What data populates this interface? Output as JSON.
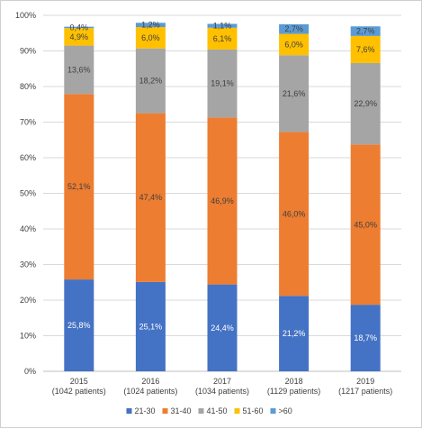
{
  "chart_data": {
    "type": "bar",
    "stacked": true,
    "normalized_percent": true,
    "categories": [
      "2015",
      "2016",
      "2017",
      "2018",
      "2019"
    ],
    "category_sublabels": [
      "(1042  patients)",
      "(1024 patients)",
      "(1034 patients)",
      "(1129 patients)",
      "(1217 patients)"
    ],
    "series": [
      {
        "name": "21-30",
        "color": "#4472C4",
        "values": [
          25.8,
          25.1,
          24.4,
          21.2,
          18.7
        ],
        "labels": [
          "25,8%",
          "25,1%",
          "24,4%",
          "21,2%",
          "18,7%"
        ],
        "label_color": "#ffffff"
      },
      {
        "name": "31-40",
        "color": "#ED7D31",
        "values": [
          52.1,
          47.4,
          46.9,
          46.0,
          45.0
        ],
        "labels": [
          "52,1%",
          "47,4%",
          "46,9%",
          "46,0%",
          "45,0%"
        ],
        "label_color": "#404040"
      },
      {
        "name": "41-50",
        "color": "#A5A5A5",
        "values": [
          13.6,
          18.2,
          19.1,
          21.6,
          22.9
        ],
        "labels": [
          "13,6%",
          "18,2%",
          "19,1%",
          "21,6%",
          "22,9%"
        ],
        "label_color": "#404040"
      },
      {
        "name": "51-60",
        "color": "#FFC000",
        "values": [
          4.9,
          6.0,
          6.1,
          6.0,
          7.6
        ],
        "labels": [
          "4,9%",
          "6,0%",
          "6,1%",
          "6,0%",
          "7,6%"
        ],
        "label_color": "#404040"
      },
      {
        "name": ">60",
        "color": "#5B9BD5",
        "values": [
          0.4,
          1.2,
          1.1,
          2.7,
          2.7
        ],
        "labels": [
          "0,4%",
          "1,2%",
          "1,1%",
          "2,7%",
          "2,7%"
        ],
        "label_color": "#404040"
      }
    ],
    "ylim": [
      0,
      100
    ],
    "yticks": [
      "0%",
      "10%",
      "20%",
      "30%",
      "40%",
      "50%",
      "60%",
      "70%",
      "80%",
      "90%",
      "100%"
    ],
    "grid": true,
    "legend_position": "bottom"
  }
}
